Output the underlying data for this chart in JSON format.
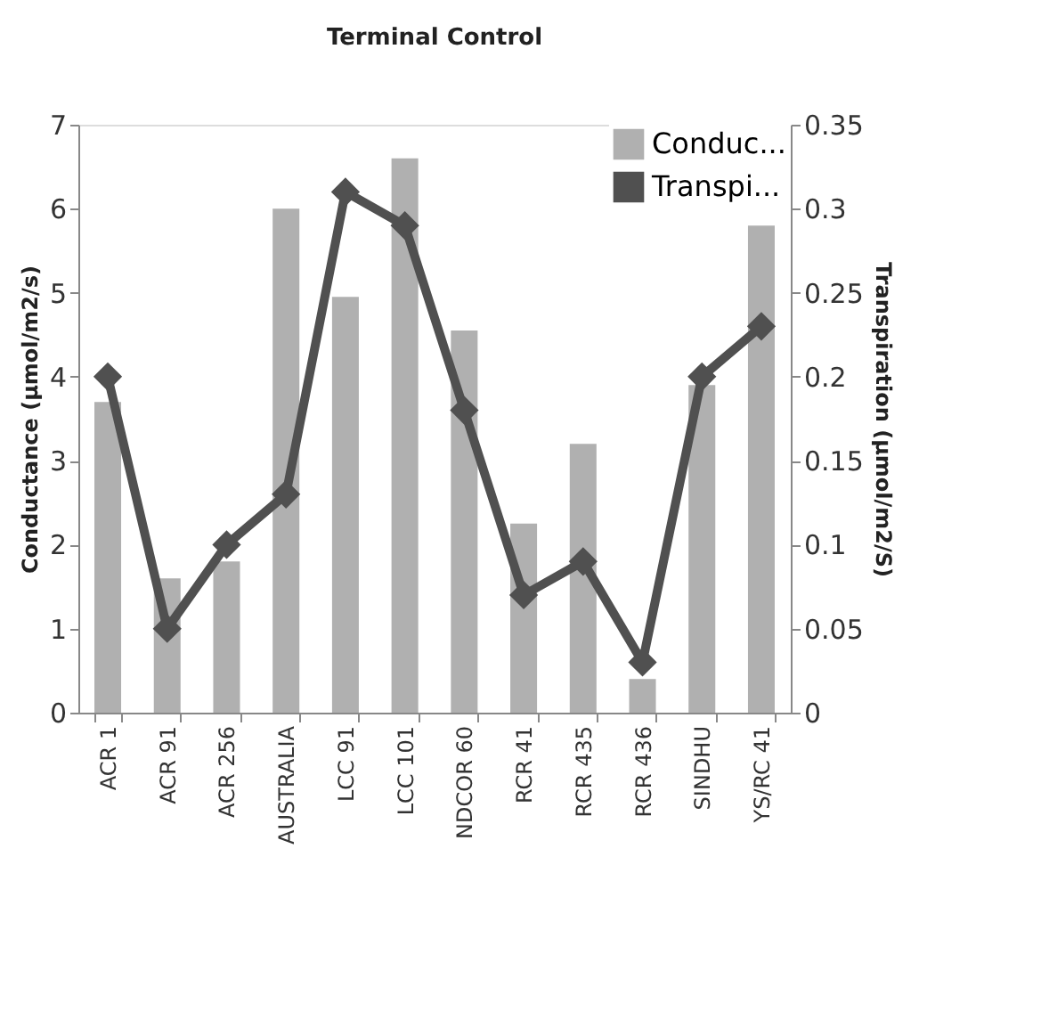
{
  "chart_data": {
    "type": "bar",
    "title": "Terminal Control",
    "ylabel": "Conductance (µmol/m2/s)",
    "y2label": "Transpiration (µmol/m2/S)",
    "categories": [
      "ACR 1",
      "ACR 91",
      "ACR 256",
      "AUSTRALIA",
      "LCC 91",
      "LCC 101",
      "NDCOR 60",
      "RCR 41",
      "RCR 435",
      "RCR 436",
      "SINDHU",
      "YS/RC 41"
    ],
    "series": [
      {
        "name": "Conduc...",
        "color": "#b0b0b0",
        "values": [
          3.7,
          1.6,
          1.8,
          6.0,
          4.95,
          6.6,
          4.55,
          2.25,
          3.2,
          0.4,
          3.9,
          5.8
        ]
      },
      {
        "name": "Transpi...",
        "type": "line",
        "axis": "y2",
        "color": "#505050",
        "marker": "diamond",
        "values": [
          0.2,
          0.05,
          0.1,
          0.13,
          0.31,
          0.29,
          0.18,
          0.07,
          0.09,
          0.03,
          0.2,
          0.23
        ]
      }
    ],
    "ylim": [
      0,
      7
    ],
    "yticks": [
      0,
      1,
      2,
      3,
      4,
      5,
      6,
      7
    ],
    "y2lim": [
      0,
      0.35
    ],
    "y2ticks": [
      0,
      0.05,
      0.1,
      0.15,
      0.2,
      0.25,
      0.3,
      0.35
    ],
    "legend": "top right",
    "grid": false
  }
}
